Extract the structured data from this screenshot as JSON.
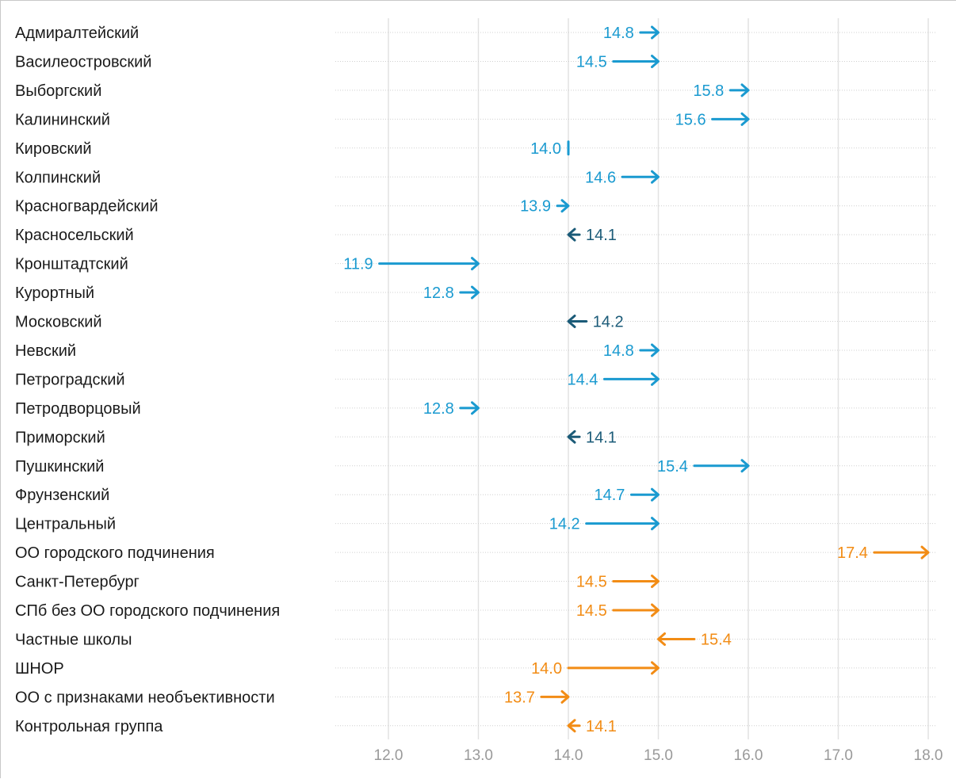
{
  "chart_data": {
    "type": "arrow",
    "xlim": [
      11.5,
      18.1
    ],
    "x_ticks": [
      "12.0",
      "13.0",
      "14.0",
      "15.0",
      "16.0",
      "17.0",
      "18.0"
    ],
    "x_tick_values": [
      12,
      13,
      14,
      15,
      16,
      17,
      18
    ],
    "grid": true,
    "colors": {
      "increase_district": "#1a9ad0",
      "decrease_district": "#1b5b78",
      "group": "#f28c15",
      "gridline": "#e2e2e2",
      "dotted": "#d0d0d0"
    },
    "rows": [
      {
        "label": "Адмиралтейский",
        "start": 14.8,
        "end": 15.0,
        "start_label": "14.8",
        "group": "district"
      },
      {
        "label": "Василеостровский",
        "start": 14.5,
        "end": 15.0,
        "start_label": "14.5",
        "group": "district"
      },
      {
        "label": "Выборгский",
        "start": 15.8,
        "end": 16.0,
        "start_label": "15.8",
        "group": "district"
      },
      {
        "label": "Калининский",
        "start": 15.6,
        "end": 16.0,
        "start_label": "15.6",
        "group": "district"
      },
      {
        "label": "Кировский",
        "start": 14.0,
        "end": 14.0,
        "start_label": "14.0",
        "group": "district"
      },
      {
        "label": "Колпинский",
        "start": 14.6,
        "end": 15.0,
        "start_label": "14.6",
        "group": "district"
      },
      {
        "label": "Красногвардейский",
        "start": 13.9,
        "end": 14.0,
        "start_label": "13.9",
        "group": "district"
      },
      {
        "label": "Красносельский",
        "start": 14.1,
        "end": 14.0,
        "start_label": "14.1",
        "group": "district"
      },
      {
        "label": "Кронштадтский",
        "start": 11.9,
        "end": 13.0,
        "start_label": "11.9",
        "group": "district"
      },
      {
        "label": "Курортный",
        "start": 12.8,
        "end": 13.0,
        "start_label": "12.8",
        "group": "district"
      },
      {
        "label": "Московский",
        "start": 14.2,
        "end": 14.0,
        "start_label": "14.2",
        "group": "district"
      },
      {
        "label": "Невский",
        "start": 14.8,
        "end": 15.0,
        "start_label": "14.8",
        "group": "district"
      },
      {
        "label": "Петроградский",
        "start": 14.4,
        "end": 15.0,
        "start_label": "14.4",
        "group": "district"
      },
      {
        "label": "Петродворцовый",
        "start": 12.8,
        "end": 13.0,
        "start_label": "12.8",
        "group": "district"
      },
      {
        "label": "Приморский",
        "start": 14.1,
        "end": 14.0,
        "start_label": "14.1",
        "group": "district"
      },
      {
        "label": "Пушкинский",
        "start": 15.4,
        "end": 16.0,
        "start_label": "15.4",
        "group": "district"
      },
      {
        "label": "Фрунзенский",
        "start": 14.7,
        "end": 15.0,
        "start_label": "14.7",
        "group": "district"
      },
      {
        "label": "Центральный",
        "start": 14.2,
        "end": 15.0,
        "start_label": "14.2",
        "group": "district"
      },
      {
        "label": "ОО городского подчинения",
        "start": 17.4,
        "end": 18.0,
        "start_label": "17.4",
        "group": "group"
      },
      {
        "label": "Санкт-Петербург",
        "start": 14.5,
        "end": 15.0,
        "start_label": "14.5",
        "group": "group"
      },
      {
        "label": "СПб без ОО городского подчинения",
        "start": 14.5,
        "end": 15.0,
        "start_label": "14.5",
        "group": "group"
      },
      {
        "label": "Частные школы",
        "start": 15.4,
        "end": 15.0,
        "start_label": "15.4",
        "group": "group"
      },
      {
        "label": "ШНОР",
        "start": 14.0,
        "end": 15.0,
        "start_label": "14.0",
        "group": "group"
      },
      {
        "label": "ОО с признаками необъективности",
        "start": 13.7,
        "end": 14.0,
        "start_label": "13.7",
        "group": "group"
      },
      {
        "label": "Контрольная группа",
        "start": 14.1,
        "end": 14.0,
        "start_label": "14.1",
        "group": "group"
      }
    ]
  }
}
